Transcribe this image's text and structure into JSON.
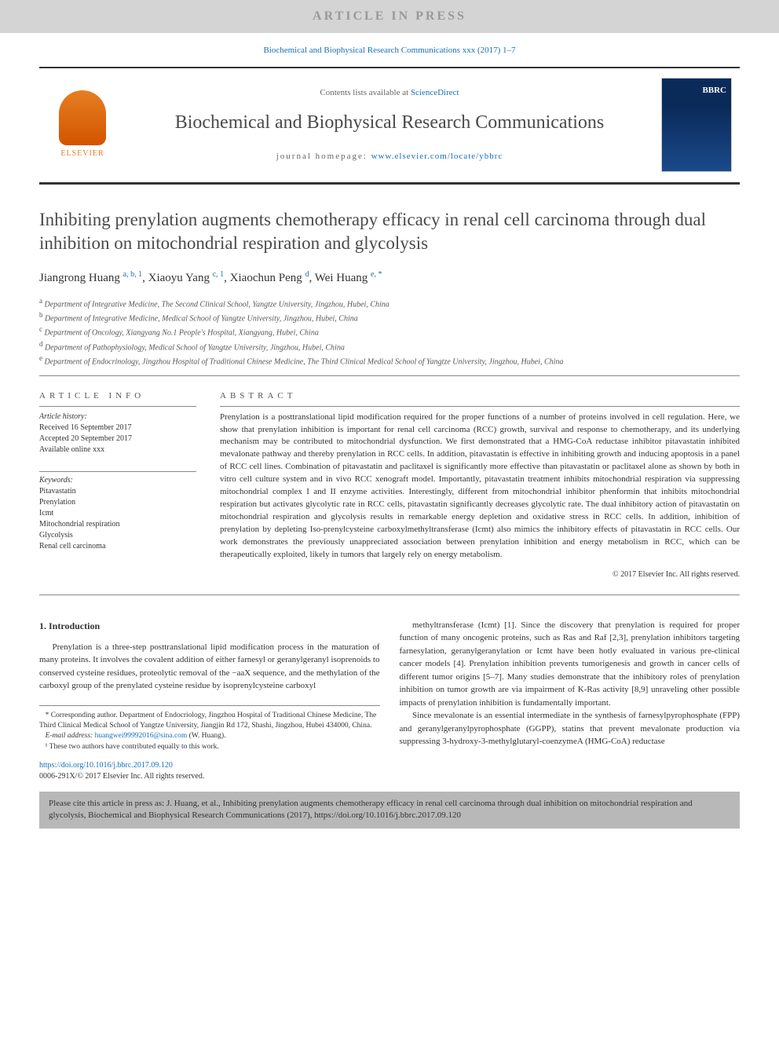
{
  "banner": "ARTICLE IN PRESS",
  "citation_top": "Biochemical and Biophysical Research Communications xxx (2017) 1–7",
  "header": {
    "contents_prefix": "Contents lists available at ",
    "contents_link": "ScienceDirect",
    "journal_name": "Biochemical and Biophysical Research Communications",
    "homepage_prefix": "journal homepage: ",
    "homepage_url": "www.elsevier.com/locate/ybbrc",
    "elsevier": "ELSEVIER",
    "cover_abbr": "BBRC"
  },
  "article": {
    "title": "Inhibiting prenylation augments chemotherapy efficacy in renal cell carcinoma through dual inhibition on mitochondrial respiration and glycolysis"
  },
  "authors": [
    {
      "name": "Jiangrong Huang",
      "sup": "a, b, 1"
    },
    {
      "name": "Xiaoyu Yang",
      "sup": "c, 1"
    },
    {
      "name": "Xiaochun Peng",
      "sup": "d"
    },
    {
      "name": "Wei Huang",
      "sup": "e, *"
    }
  ],
  "affiliations": [
    {
      "sup": "a",
      "text": "Department of Integrative Medicine, The Second Clinical School, Yangtze University, Jingzhou, Hubei, China"
    },
    {
      "sup": "b",
      "text": "Department of Integrative Medicine, Medical School of Yangtze University, Jingzhou, Hubei, China"
    },
    {
      "sup": "c",
      "text": "Department of Oncology, Xiangyang No.1 People's Hospital, Xiangyang, Hubei, China"
    },
    {
      "sup": "d",
      "text": "Department of Pathophysiology, Medical School of Yangtze University, Jingzhou, Hubei, China"
    },
    {
      "sup": "e",
      "text": "Department of Endocrinology, Jingzhou Hospital of Traditional Chinese Medicine, The Third Clinical Medical School of Yangtze University, Jingzhou, Hubei, China"
    }
  ],
  "info": {
    "section_label": "ARTICLE INFO",
    "history_label": "Article history:",
    "history": [
      "Received 16 September 2017",
      "Accepted 20 September 2017",
      "Available online xxx"
    ],
    "keywords_label": "Keywords:",
    "keywords": [
      "Pitavastatin",
      "Prenylation",
      "Icmt",
      "Mitochondrial respiration",
      "Glycolysis",
      "Renal cell carcinoma"
    ]
  },
  "abstract": {
    "section_label": "ABSTRACT",
    "text": "Prenylation is a posttranslational lipid modification required for the proper functions of a number of proteins involved in cell regulation. Here, we show that prenylation inhibition is important for renal cell carcinoma (RCC) growth, survival and response to chemotherapy, and its underlying mechanism may be contributed to mitochondrial dysfunction. We first demonstrated that a HMG-CoA reductase inhibitor pitavastatin inhibited mevalonate pathway and thereby prenylation in RCC cells. In addition, pitavastatin is effective in inhibiting growth and inducing apoptosis in a panel of RCC cell lines. Combination of pitavastatin and paclitaxel is significantly more effective than pitavastatin or paclitaxel alone as shown by both in vitro cell culture system and in vivo RCC xenograft model. Importantly, pitavastatin treatment inhibits mitochondrial respiration via suppressing mitochondrial complex I and II enzyme activities. Interestingly, different from mitochondrial inhibitor phenformin that inhibits mitochondrial respiration but activates glycolytic rate in RCC cells, pitavastatin significantly decreases glycolytic rate. The dual inhibitory action of pitavastatin on mitochondrial respiration and glycolysis results in remarkable energy depletion and oxidative stress in RCC cells. In addition, inhibition of prenylation by depleting Iso-prenylcysteine carboxylmethyltransferase (Icmt) also mimics the inhibitory effects of pitavastatin in RCC cells. Our work demonstrates the previously unappreciated association between prenylation inhibition and energy metabolism in RCC, which can be therapeutically exploited, likely in tumors that largely rely on energy metabolism.",
    "copyright": "© 2017 Elsevier Inc. All rights reserved."
  },
  "body": {
    "intro_heading": "1. Introduction",
    "col1_p1": "Prenylation is a three-step posttranslational lipid modification process in the maturation of many proteins. It involves the covalent addition of either farnesyl or geranylgeranyl isoprenoids to conserved cysteine residues, proteolytic removal of the −aaX sequence, and the methylation of the carboxyl group of the prenylated cysteine residue by isoprenylcysteine carboxyl",
    "col2_p1": "methyltransferase (Icmt) [1]. Since the discovery that prenylation is required for proper function of many oncogenic proteins, such as Ras and Raf [2,3], prenylation inhibitors targeting farnesylation, geranylgeranylation or Icmt have been hotly evaluated in various pre-clinical cancer models [4]. Prenylation inhibition prevents tumorigenesis and growth in cancer cells of different tumor origins [5–7]. Many studies demonstrate that the inhibitory roles of prenylation inhibition on tumor growth are via impairment of K-Ras activity [8,9] unraveling other possible impacts of prenylation inhibition is fundamentally important.",
    "col2_p2": "Since mevalonate is an essential intermediate in the synthesis of farnesylpyrophosphate (FPP) and geranylgeranylpyrophosphate (GGPP), statins that prevent mevalonate production via suppressing 3-hydroxy-3-methylglutaryl-coenzymeA (HMG-CoA) reductase"
  },
  "footnotes": {
    "corresp": "* Corresponding author. Department of Endocriology, Jingzhou Hospital of Traditional Chinese Medicine, The Third Clinical Medical School of Yangtze University, Jiangjin Rd 172, Shashi, Jingzhou, Hubei 434000, China.",
    "email_label": "E-mail address: ",
    "email": "huangwei99992016@sina.com",
    "email_suffix": " (W. Huang).",
    "equal": "¹ These two authors have contributed equally to this work."
  },
  "doi": {
    "url": "https://doi.org/10.1016/j.bbrc.2017.09.120",
    "issn": "0006-291X/© 2017 Elsevier Inc. All rights reserved."
  },
  "citebox": "Please cite this article in press as: J. Huang, et al., Inhibiting prenylation augments chemotherapy efficacy in renal cell carcinoma through dual inhibition on mitochondrial respiration and glycolysis, Biochemical and Biophysical Research Communications (2017), https://doi.org/10.1016/j.bbrc.2017.09.120",
  "colors": {
    "link": "#1670b8",
    "banner_bg": "#d4d4d4",
    "banner_fg": "#999999",
    "citebox_bg": "#b8b8b8",
    "elsevier": "#e67e22"
  }
}
